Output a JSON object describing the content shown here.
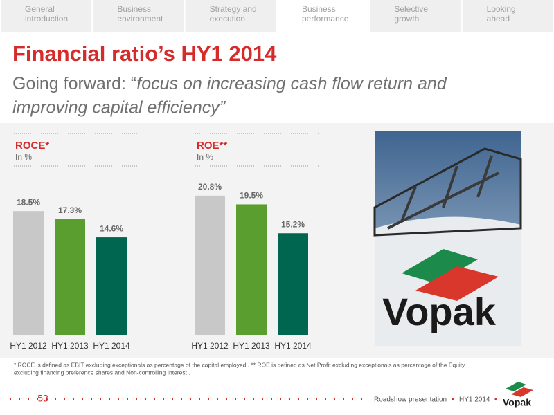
{
  "nav": {
    "tabs": [
      [
        "General",
        "introduction"
      ],
      [
        "Business",
        "environment"
      ],
      [
        "Strategy and",
        "execution"
      ],
      [
        "Business",
        "performance"
      ],
      [
        "Selective",
        "growth"
      ],
      [
        "Looking",
        "ahead"
      ]
    ],
    "active": 3
  },
  "title": "Financial ratio’s HY1 2014",
  "subtitle": {
    "plain": "Going forward: “",
    "italic_lines": [
      "focus on increasing cash flow return and",
      "improving capital efficiency”"
    ]
  },
  "chart_data": [
    {
      "type": "bar",
      "title": "ROCE*",
      "subtitle": "In %",
      "categories": [
        "HY1 2012",
        "HY1 2013",
        "HY1 2014"
      ],
      "values": [
        18.5,
        17.3,
        14.6
      ],
      "value_labels": [
        "18.5%",
        "17.3%",
        "14.6%"
      ],
      "colors": [
        "#c8c8c8",
        "#5a9e2f",
        "#00664f"
      ]
    },
    {
      "type": "bar",
      "title": "ROE**",
      "subtitle": "In %",
      "categories": [
        "HY1 2012",
        "HY1 2013",
        "HY1 2014"
      ],
      "values": [
        20.8,
        19.5,
        15.2
      ],
      "value_labels": [
        "20.8%",
        "19.5%",
        "15.2%"
      ],
      "colors": [
        "#c8c8c8",
        "#5a9e2f",
        "#00664f"
      ]
    }
  ],
  "photo_logo": "Vopak",
  "footnote": [
    "* ROCE  is defined as EBIT excluding exceptionals as percentage of the capital employed . ** ROE is defined as Net Profit excluding exceptionals as percentage of the Equity",
    "excluding financing preference shares and Non-controlling Interest ."
  ],
  "footer": {
    "page": "53",
    "presentation": "Roadshow presentation",
    "period": "HY1 2014",
    "logo": "Vopak"
  }
}
